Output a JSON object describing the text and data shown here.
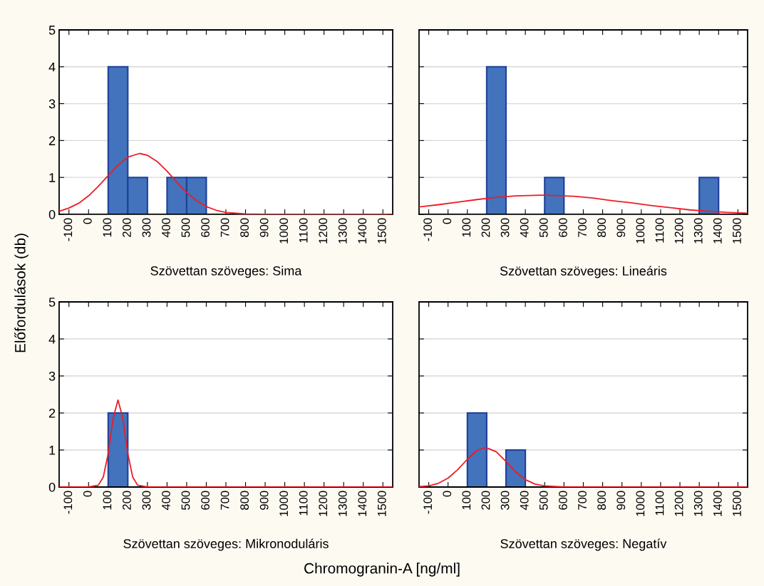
{
  "chart_data": [
    {
      "type": "histogram",
      "xlabel": "Szövettan szöveges: Sima",
      "ylabel": "Előfordulások (db)",
      "xlim": [
        -150,
        1550
      ],
      "ylim": [
        0,
        5
      ],
      "xticks": [
        -100,
        0,
        100,
        200,
        300,
        400,
        500,
        600,
        700,
        800,
        900,
        1000,
        1100,
        1200,
        1300,
        1400,
        1500
      ],
      "yticks": [
        0,
        1,
        2,
        3,
        4,
        5
      ],
      "grid": "y",
      "legend": false,
      "series": [
        {
          "color": "#4273bc",
          "bins": [
            100,
            200,
            300,
            400,
            500,
            600
          ],
          "values": [
            4,
            1,
            0,
            1,
            1
          ]
        },
        {
          "type": "line",
          "color": "#ee1c25",
          "x": [
            -150,
            -100,
            -50,
            0,
            50,
            100,
            150,
            200,
            260,
            300,
            350,
            400,
            450,
            500,
            550,
            600,
            650,
            700,
            800,
            900,
            1550
          ],
          "values": [
            0.08,
            0.17,
            0.3,
            0.5,
            0.76,
            1.05,
            1.33,
            1.55,
            1.65,
            1.6,
            1.43,
            1.17,
            0.87,
            0.59,
            0.37,
            0.21,
            0.11,
            0.05,
            0.01,
            0,
            0
          ]
        }
      ]
    },
    {
      "type": "histogram",
      "xlabel": "Szövettan szöveges: Lineáris",
      "xlim": [
        -150,
        1550
      ],
      "ylim": [
        0,
        5
      ],
      "xticks": [
        -100,
        0,
        100,
        200,
        300,
        400,
        500,
        600,
        700,
        800,
        900,
        1000,
        1100,
        1200,
        1300,
        1400,
        1500
      ],
      "yticks": [
        0,
        1,
        2,
        3,
        4,
        5
      ],
      "grid": "y",
      "legend": false,
      "tick_labels": "x",
      "series": [
        {
          "color": "#4273bc",
          "bins": [
            200,
            300,
            400,
            500,
            600,
            700,
            800,
            900,
            1000,
            1100,
            1200,
            1300,
            1400
          ],
          "values": [
            4,
            0,
            0,
            1,
            0,
            0,
            0,
            0,
            0,
            0,
            0,
            1
          ]
        },
        {
          "type": "line",
          "color": "#ee1c25",
          "x": [
            -150,
            -50,
            50,
            150,
            250,
            350,
            480,
            550,
            650,
            750,
            850,
            950,
            1050,
            1150,
            1250,
            1350,
            1450,
            1550
          ],
          "values": [
            0.2,
            0.26,
            0.33,
            0.4,
            0.46,
            0.5,
            0.52,
            0.51,
            0.49,
            0.44,
            0.37,
            0.31,
            0.24,
            0.18,
            0.12,
            0.08,
            0.05,
            0.03
          ]
        }
      ]
    },
    {
      "type": "histogram",
      "xlabel": "Szövettan szöveges: Mikronoduláris",
      "annotations": [
        "Chromogranin-A [ng/ml]"
      ],
      "xlim": [
        -150,
        1550
      ],
      "ylim": [
        0,
        5
      ],
      "xticks": [
        -100,
        0,
        100,
        200,
        300,
        400,
        500,
        600,
        700,
        800,
        900,
        1000,
        1100,
        1200,
        1300,
        1400,
        1500
      ],
      "yticks": [
        0,
        1,
        2,
        3,
        4,
        5
      ],
      "grid": "y",
      "legend": false,
      "series": [
        {
          "color": "#4273bc",
          "bins": [
            100,
            200
          ],
          "values": [
            2
          ]
        },
        {
          "type": "line",
          "color": "#ee1c25",
          "x": [
            -150,
            0,
            50,
            75,
            100,
            125,
            150,
            175,
            200,
            225,
            250,
            300,
            1550
          ],
          "values": [
            0,
            0,
            0.05,
            0.27,
            0.9,
            1.85,
            2.35,
            1.85,
            0.9,
            0.27,
            0.05,
            0,
            0
          ]
        }
      ]
    },
    {
      "type": "histogram",
      "xlabel": "Szövettan szöveges: Negatív",
      "xlim": [
        -150,
        1550
      ],
      "ylim": [
        0,
        5
      ],
      "xticks": [
        -100,
        0,
        100,
        200,
        300,
        400,
        500,
        600,
        700,
        800,
        900,
        1000,
        1100,
        1200,
        1300,
        1400,
        1500
      ],
      "yticks": [
        0,
        1,
        2,
        3,
        4,
        5
      ],
      "grid": "y",
      "legend": false,
      "tick_labels": "x",
      "series": [
        {
          "color": "#4273bc",
          "bins": [
            100,
            200,
            300,
            400
          ],
          "values": [
            2,
            0,
            1
          ]
        },
        {
          "type": "line",
          "color": "#ee1c25",
          "x": [
            -150,
            -100,
            -50,
            0,
            50,
            100,
            150,
            195,
            250,
            300,
            350,
            400,
            450,
            500,
            600,
            1550
          ],
          "values": [
            0.01,
            0.03,
            0.1,
            0.24,
            0.47,
            0.75,
            0.99,
            1.07,
            0.95,
            0.69,
            0.41,
            0.2,
            0.08,
            0.03,
            0,
            0
          ]
        }
      ]
    }
  ]
}
